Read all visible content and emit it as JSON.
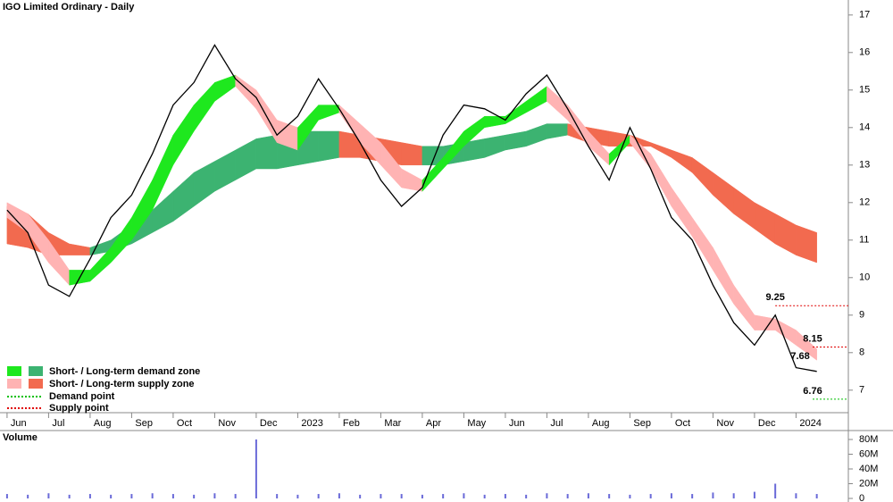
{
  "chart_data": {
    "type": "price-zones",
    "title": "IGO Limited Ordinary - Daily",
    "volume_title": "Volume",
    "x": [
      0,
      0.5,
      1,
      1.5,
      2,
      2.5,
      3,
      3.5,
      4,
      4.5,
      5,
      5.5,
      6,
      6.5,
      7,
      7.5,
      8,
      8.5,
      9,
      9.5,
      10,
      10.5,
      11,
      11.5,
      12,
      12.5,
      13,
      13.5,
      14,
      14.5,
      15,
      15.5,
      16,
      16.5,
      17,
      17.5,
      18,
      18.5,
      19,
      19.5
    ],
    "xlim": [
      -0.17,
      20.26
    ],
    "xticks": [
      {
        "value": 0,
        "label": "Jun"
      },
      {
        "value": 1,
        "label": "Jul"
      },
      {
        "value": 2,
        "label": "Aug"
      },
      {
        "value": 3,
        "label": "Sep"
      },
      {
        "value": 4,
        "label": "Oct"
      },
      {
        "value": 5,
        "label": "Nov"
      },
      {
        "value": 6,
        "label": "Dec"
      },
      {
        "value": 7,
        "label": "2023"
      },
      {
        "value": 8,
        "label": "Feb"
      },
      {
        "value": 9,
        "label": "Mar"
      },
      {
        "value": 10,
        "label": "Apr"
      },
      {
        "value": 11,
        "label": "May"
      },
      {
        "value": 12,
        "label": "Jun"
      },
      {
        "value": 13,
        "label": "Jul"
      },
      {
        "value": 14,
        "label": "Aug"
      },
      {
        "value": 15,
        "label": "Sep"
      },
      {
        "value": 16,
        "label": "Oct"
      },
      {
        "value": 17,
        "label": "Nov"
      },
      {
        "value": 18,
        "label": "Dec"
      },
      {
        "value": 19,
        "label": "2024"
      }
    ],
    "ylim": [
      6.4,
      17.4
    ],
    "yticks": [
      7,
      8,
      9,
      10,
      11,
      12,
      13,
      14,
      15,
      16,
      17
    ],
    "price": {
      "color": "#000000",
      "values": [
        11.8,
        11.2,
        9.8,
        9.5,
        10.5,
        11.6,
        12.2,
        13.3,
        14.6,
        15.2,
        16.2,
        15.3,
        14.8,
        13.8,
        14.3,
        15.3,
        14.5,
        13.6,
        12.6,
        11.9,
        12.4,
        13.8,
        14.6,
        14.5,
        14.2,
        14.9,
        15.4,
        14.5,
        13.5,
        12.6,
        14.0,
        12.9,
        11.6,
        11.0,
        9.8,
        8.8,
        8.2,
        9.0,
        7.6,
        7.5
      ]
    },
    "zones": [
      {
        "name": "Short-term zone",
        "demand_color": "#1ee81e",
        "supply_color": "#ffb3b3",
        "upper": [
          12.0,
          11.7,
          11.0,
          10.2,
          10.2,
          10.8,
          11.6,
          12.6,
          13.8,
          14.6,
          15.2,
          15.4,
          15.0,
          14.2,
          14.0,
          14.6,
          14.6,
          14.1,
          13.6,
          12.9,
          12.6,
          13.2,
          13.9,
          14.3,
          14.3,
          14.7,
          15.1,
          14.6,
          13.9,
          13.3,
          13.8,
          13.3,
          12.4,
          11.6,
          10.8,
          9.8,
          9.0,
          8.9,
          8.6,
          8.1
        ],
        "lower": [
          11.6,
          11.2,
          10.4,
          9.8,
          9.9,
          10.4,
          11.0,
          11.8,
          13.0,
          13.9,
          14.7,
          15.1,
          14.5,
          13.6,
          13.4,
          14.2,
          14.4,
          13.6,
          13.0,
          12.4,
          12.3,
          12.9,
          13.5,
          14.0,
          14.1,
          14.4,
          14.7,
          14.2,
          13.5,
          13.0,
          13.6,
          12.9,
          11.9,
          11.1,
          10.2,
          9.3,
          8.6,
          8.6,
          8.2,
          7.8
        ]
      },
      {
        "name": "Long-term zone",
        "demand_color": "#3cb371",
        "supply_color": "#f26a4f",
        "upper": [
          11.9,
          11.7,
          11.2,
          10.9,
          10.8,
          11.0,
          11.4,
          11.8,
          12.3,
          12.8,
          13.1,
          13.4,
          13.7,
          13.8,
          13.9,
          13.9,
          13.9,
          13.8,
          13.7,
          13.6,
          13.5,
          13.5,
          13.6,
          13.7,
          13.8,
          13.9,
          14.1,
          14.1,
          14.0,
          13.9,
          13.8,
          13.6,
          13.4,
          13.2,
          12.8,
          12.4,
          12.0,
          11.7,
          11.4,
          11.2
        ],
        "lower": [
          10.9,
          10.8,
          10.6,
          10.6,
          10.6,
          10.7,
          10.9,
          11.2,
          11.5,
          11.9,
          12.3,
          12.6,
          12.9,
          12.9,
          13.0,
          13.1,
          13.2,
          13.2,
          13.1,
          13.0,
          13.0,
          13.0,
          13.1,
          13.2,
          13.4,
          13.5,
          13.7,
          13.8,
          13.6,
          13.5,
          13.5,
          13.5,
          13.2,
          12.8,
          12.2,
          11.7,
          11.3,
          10.9,
          10.6,
          10.4
        ]
      }
    ],
    "levels": [
      {
        "value": 9.25,
        "x": 18.5,
        "line_color": "#e00000"
      },
      {
        "value": 8.15,
        "x": 19.4,
        "line_color": "#e00000"
      },
      {
        "value": 7.68,
        "x": 19.1,
        "line_color": null
      },
      {
        "value": 6.76,
        "x": 19.4,
        "line_color": "#00c000"
      }
    ],
    "volume": {
      "color": "#6a6ad8",
      "values": [
        6000000,
        5000000,
        7000000,
        5000000,
        6000000,
        5000000,
        6000000,
        7000000,
        6000000,
        5000000,
        7000000,
        6000000,
        80000000,
        6000000,
        5000000,
        6000000,
        7000000,
        5000000,
        6000000,
        6000000,
        5000000,
        6000000,
        7000000,
        5000000,
        6000000,
        5000000,
        7000000,
        6000000,
        7000000,
        6000000,
        5000000,
        6000000,
        7000000,
        6000000,
        8000000,
        7000000,
        9000000,
        20000000,
        7000000,
        6000000
      ]
    },
    "vlim": [
      0,
      89700000
    ],
    "vticks": [
      {
        "value": 0,
        "label": "0"
      },
      {
        "value": 20000000,
        "label": "20M"
      },
      {
        "value": 40000000,
        "label": "40M"
      },
      {
        "value": 60000000,
        "label": "60M"
      },
      {
        "value": 80000000,
        "label": "80M"
      }
    ],
    "legend": [
      "Short- / Long-term demand zone",
      "Short- / Long-term supply zone",
      "Demand point",
      "Supply point"
    ]
  }
}
